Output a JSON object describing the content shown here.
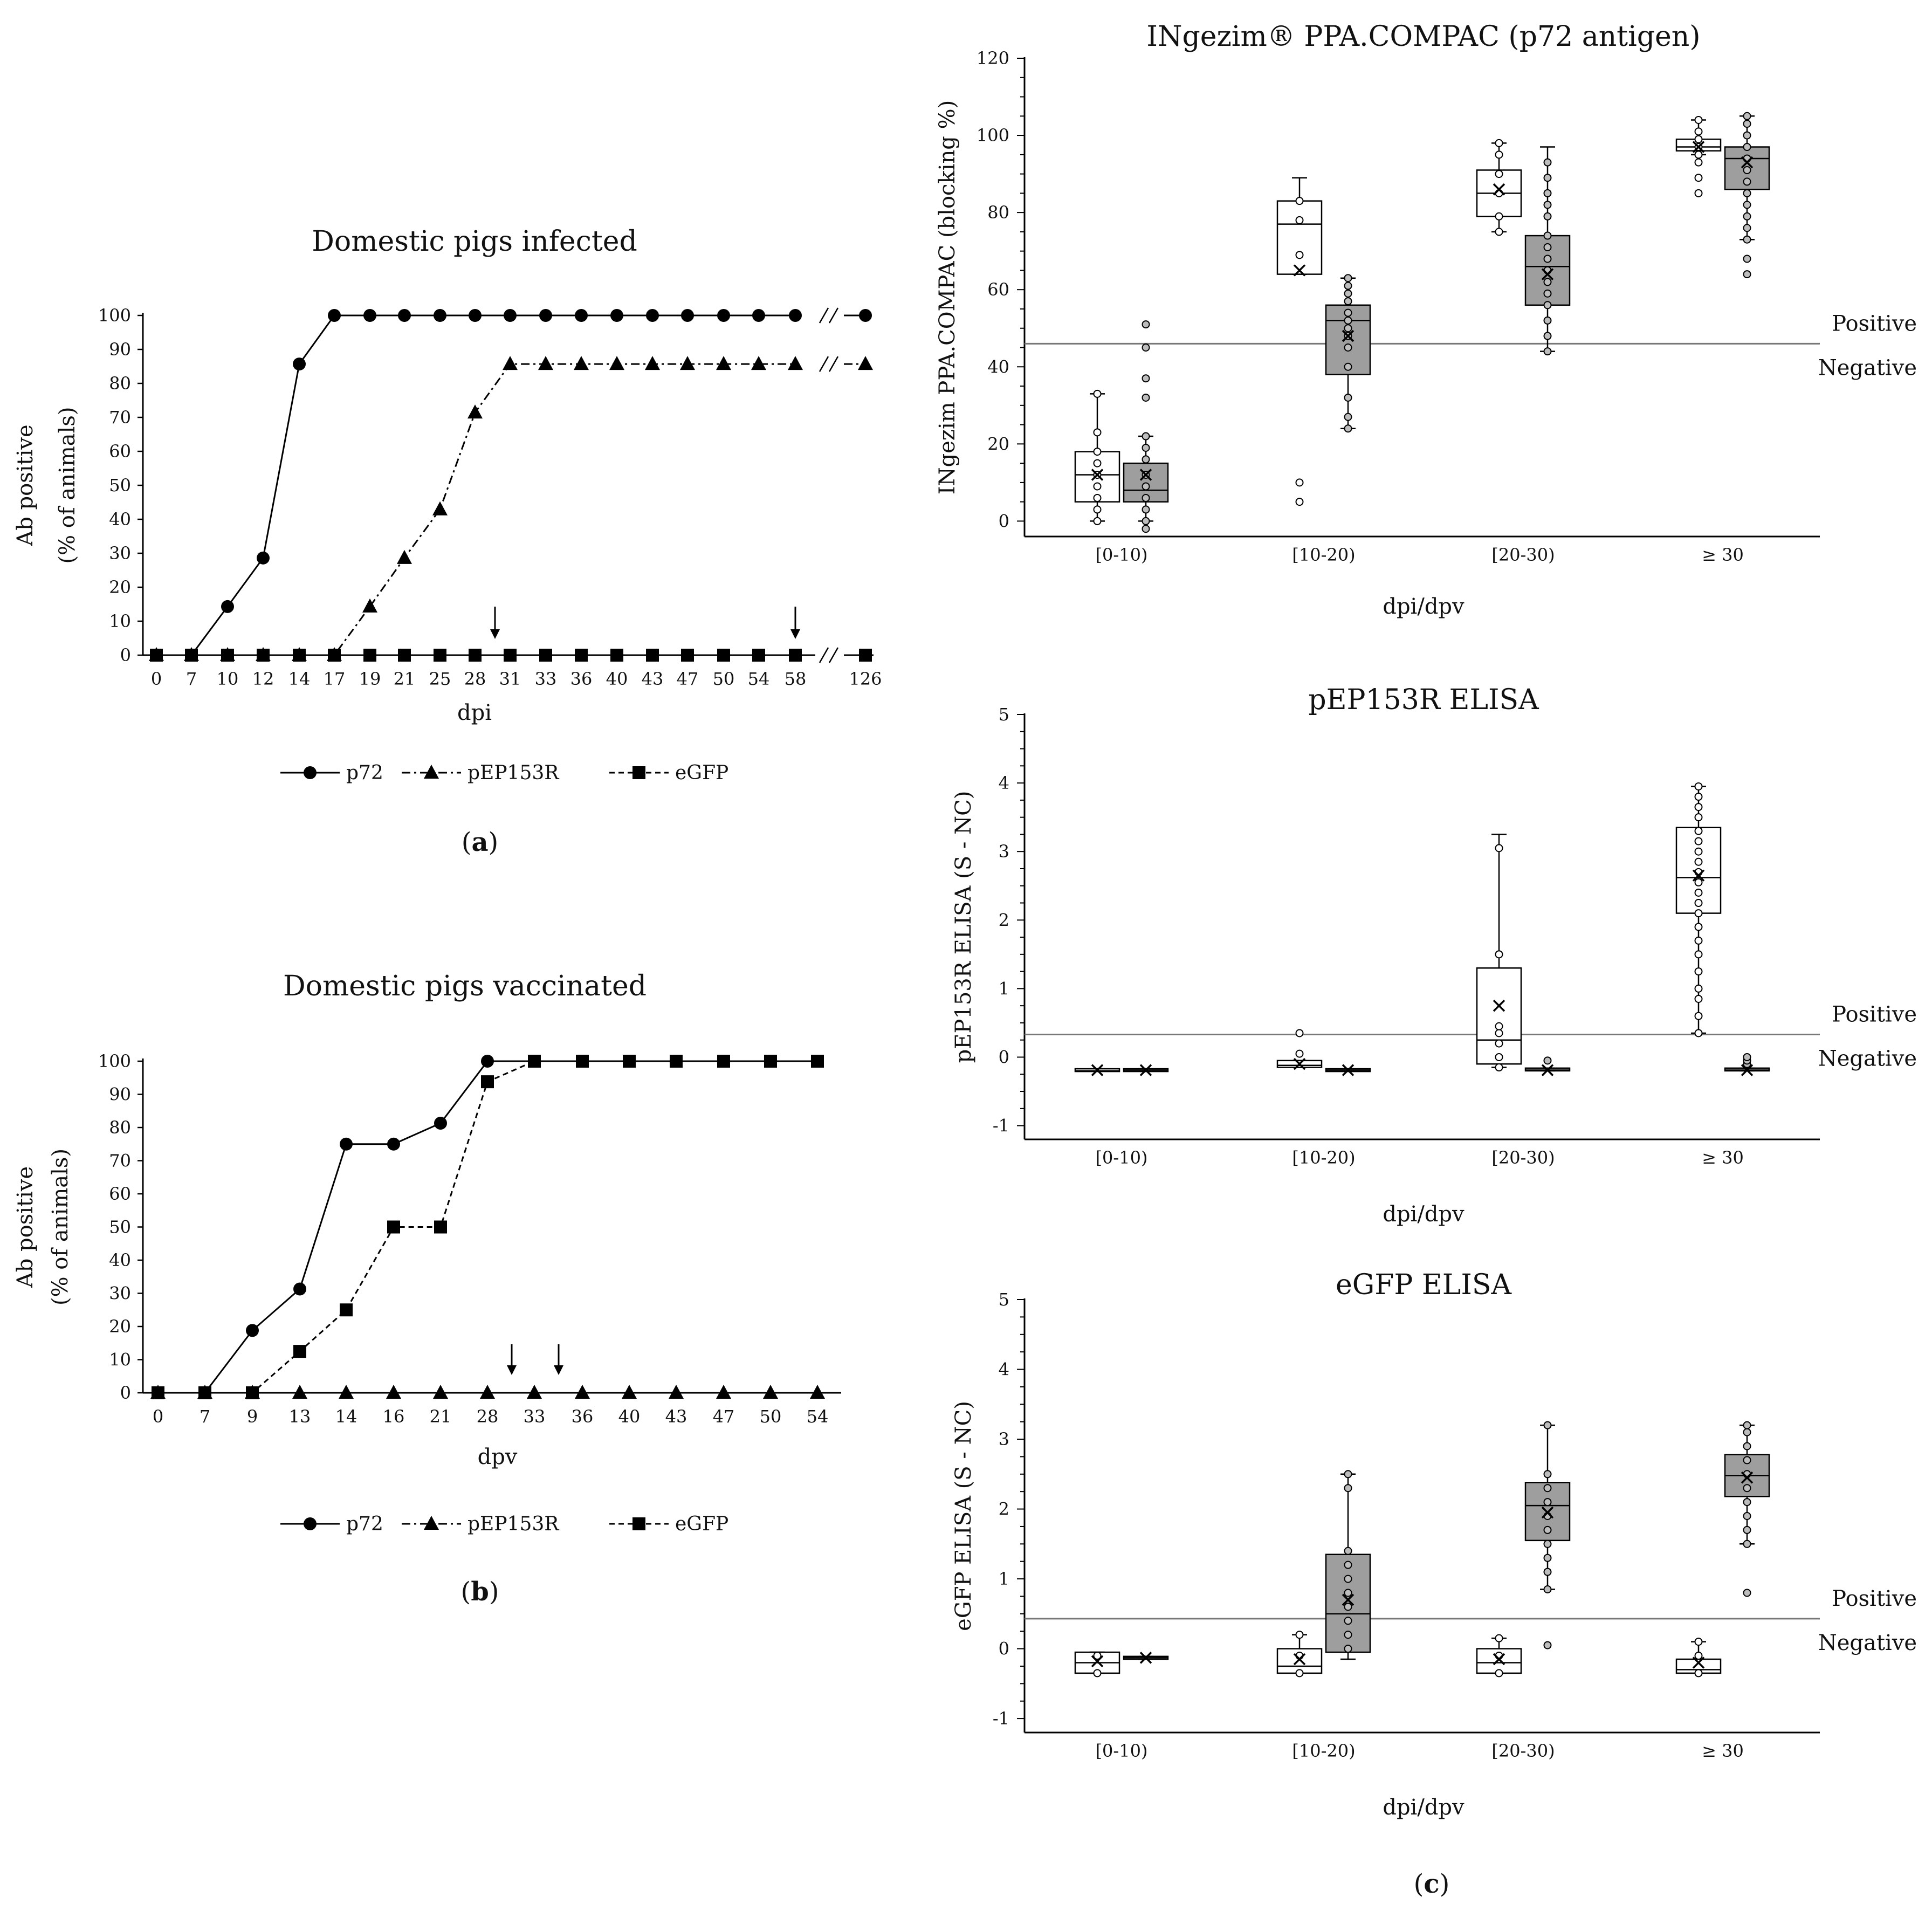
{
  "panels": {
    "a": "a",
    "b": "b",
    "c": "c"
  },
  "chart_data": [
    {
      "id": "a",
      "type": "line",
      "title": "Domestic pigs infected",
      "xlabel": "dpi",
      "ylabel": [
        "Ab positive",
        "(% of animals)"
      ],
      "ylim": [
        0,
        100
      ],
      "yticks": [
        0,
        10,
        20,
        30,
        40,
        50,
        60,
        70,
        80,
        90,
        100
      ],
      "categories": [
        "0",
        "7",
        "10",
        "12",
        "14",
        "17",
        "19",
        "21",
        "25",
        "28",
        "31",
        "33",
        "36",
        "40",
        "43",
        "47",
        "50",
        "54",
        "58",
        "126"
      ],
      "axis_break_after": "58",
      "arrows_at": [
        "28",
        "58"
      ],
      "series": [
        {
          "name": "p72",
          "marker": "circle",
          "dash": "solid",
          "values": [
            0,
            0,
            14.3,
            28.6,
            85.7,
            100,
            100,
            100,
            100,
            100,
            100,
            100,
            100,
            100,
            100,
            100,
            100,
            100,
            100,
            100
          ]
        },
        {
          "name": "pEP153R",
          "marker": "triangle",
          "dash": "dashdot",
          "values": [
            0,
            0,
            0,
            0,
            0,
            0,
            14.3,
            28.6,
            42.9,
            71.4,
            85.7,
            85.7,
            85.7,
            85.7,
            85.7,
            85.7,
            85.7,
            85.7,
            85.7,
            85.7
          ]
        },
        {
          "name": "eGFP",
          "marker": "square",
          "dash": "dashed",
          "values": [
            0,
            0,
            0,
            0,
            0,
            0,
            0,
            0,
            0,
            0,
            0,
            0,
            0,
            0,
            0,
            0,
            0,
            0,
            0,
            0
          ]
        }
      ]
    },
    {
      "id": "b",
      "type": "line",
      "title": "Domestic pigs vaccinated",
      "xlabel": "dpv",
      "ylabel": [
        "Ab positive",
        "(% of animals)"
      ],
      "ylim": [
        0,
        100
      ],
      "yticks": [
        0,
        10,
        20,
        30,
        40,
        50,
        60,
        70,
        80,
        90,
        100
      ],
      "categories": [
        "0",
        "7",
        "9",
        "13",
        "14",
        "16",
        "21",
        "28",
        "33",
        "36",
        "40",
        "43",
        "47",
        "50",
        "54"
      ],
      "arrows_at": [
        "28",
        "33"
      ],
      "series": [
        {
          "name": "p72",
          "marker": "circle",
          "dash": "solid",
          "values": [
            0,
            0,
            18.8,
            31.3,
            75,
            75,
            81.3,
            100,
            100,
            100,
            100,
            100,
            100,
            100,
            100
          ]
        },
        {
          "name": "pEP153R",
          "marker": "triangle",
          "dash": "dashdot",
          "values": [
            0,
            0,
            0,
            0,
            0,
            0,
            0,
            0,
            0,
            0,
            0,
            0,
            0,
            0,
            0
          ]
        },
        {
          "name": "eGFP",
          "marker": "square",
          "dash": "dashed",
          "values": [
            0,
            0,
            0,
            12.5,
            25,
            50,
            50,
            93.8,
            100,
            100,
            100,
            100,
            100,
            100,
            100
          ]
        }
      ]
    },
    {
      "id": "c1",
      "type": "box",
      "title": "INgezim® PPA.COMPAC (p72 antigen)",
      "xlabel": "dpi/dpv",
      "ylabel": "INgezim PPA.COMPAC (blocking %)",
      "ylim": [
        -4,
        120
      ],
      "yticks": [
        0,
        20,
        40,
        60,
        80,
        100,
        120
      ],
      "categories": [
        "[0-10)",
        "[10-20)",
        "[20-30)",
        "≥ 30"
      ],
      "cutoff": 46,
      "cutoff_labels": {
        "above": "Positive",
        "below": "Negative"
      },
      "groups": [
        {
          "cat": 0,
          "fill": "white",
          "min": 0,
          "q1": 5,
          "median": 12,
          "q3": 18,
          "max": 33,
          "mean": 12,
          "points": [
            0,
            3,
            6,
            9,
            12,
            15,
            18,
            23,
            33
          ]
        },
        {
          "cat": 0,
          "fill": "grey",
          "min": 0,
          "q1": 5,
          "median": 8,
          "q3": 15,
          "max": 22,
          "mean": 12,
          "points": [
            -2,
            0,
            3,
            6,
            9,
            12,
            16,
            19,
            22,
            32,
            37,
            45,
            51
          ]
        },
        {
          "cat": 1,
          "fill": "white",
          "min": 64,
          "q1": 64,
          "median": 77,
          "q3": 83,
          "max": 89,
          "mean": 65,
          "points": [
            5,
            10,
            69,
            78,
            83
          ]
        },
        {
          "cat": 1,
          "fill": "grey",
          "min": 24,
          "q1": 38,
          "median": 52,
          "q3": 56,
          "max": 63,
          "mean": 48,
          "points": [
            24,
            27,
            32,
            40,
            45,
            48,
            50,
            52,
            54,
            57,
            59,
            61,
            63
          ]
        },
        {
          "cat": 2,
          "fill": "white",
          "min": 75,
          "q1": 79,
          "median": 85,
          "q3": 91,
          "max": 98,
          "mean": 86,
          "points": [
            75,
            79,
            85,
            90,
            95,
            98
          ]
        },
        {
          "cat": 2,
          "fill": "grey",
          "min": 44,
          "q1": 56,
          "median": 66,
          "q3": 74,
          "max": 97,
          "mean": 64,
          "points": [
            44,
            48,
            52,
            56,
            59,
            62,
            65,
            68,
            71,
            74,
            79,
            82,
            85,
            89,
            93
          ]
        },
        {
          "cat": 3,
          "fill": "white",
          "min": 95,
          "q1": 96,
          "median": 97,
          "q3": 99,
          "max": 104,
          "mean": 97,
          "points": [
            85,
            89,
            93,
            95,
            97,
            99,
            101,
            104
          ]
        },
        {
          "cat": 3,
          "fill": "grey",
          "min": 73,
          "q1": 86,
          "median": 94,
          "q3": 97,
          "max": 105,
          "mean": 93,
          "points": [
            64,
            68,
            73,
            76,
            79,
            82,
            85,
            88,
            91,
            94,
            97,
            100,
            103,
            105
          ]
        }
      ]
    },
    {
      "id": "c2",
      "type": "box",
      "title": "pEP153R ELISA",
      "xlabel": "dpi/dpv",
      "ylabel": "pEP153R ELISA (S - NC)",
      "ylim": [
        -1.2,
        5
      ],
      "yticks": [
        -1,
        0,
        1,
        2,
        3,
        4,
        5
      ],
      "categories": [
        "[0-10)",
        "[10-20)",
        "[20-30)",
        "≥ 30"
      ],
      "cutoff": 0.33,
      "cutoff_labels": {
        "above": "Positive",
        "below": "Negative"
      },
      "groups": [
        {
          "cat": 0,
          "fill": "white",
          "min": -0.2,
          "q1": -0.2,
          "median": -0.2,
          "q3": -0.17,
          "max": -0.17,
          "mean": -0.19,
          "points": []
        },
        {
          "cat": 0,
          "fill": "grey",
          "min": -0.2,
          "q1": -0.2,
          "median": -0.19,
          "q3": -0.17,
          "max": -0.17,
          "mean": -0.19,
          "points": []
        },
        {
          "cat": 1,
          "fill": "white",
          "min": -0.15,
          "q1": -0.15,
          "median": -0.12,
          "q3": -0.05,
          "max": -0.05,
          "mean": -0.1,
          "points": [
            0.05,
            0.35
          ]
        },
        {
          "cat": 1,
          "fill": "grey",
          "min": -0.2,
          "q1": -0.2,
          "median": -0.19,
          "q3": -0.17,
          "max": -0.17,
          "mean": -0.19,
          "points": []
        },
        {
          "cat": 2,
          "fill": "white",
          "min": -0.15,
          "q1": -0.1,
          "median": 0.25,
          "q3": 1.3,
          "max": 3.25,
          "mean": 0.75,
          "points": [
            -0.15,
            0.0,
            0.2,
            0.35,
            0.45,
            1.5,
            3.05
          ]
        },
        {
          "cat": 2,
          "fill": "grey",
          "min": -0.2,
          "q1": -0.2,
          "median": -0.19,
          "q3": -0.16,
          "max": -0.16,
          "mean": -0.19,
          "points": [
            -0.05
          ]
        },
        {
          "cat": 3,
          "fill": "white",
          "min": 0.35,
          "q1": 2.1,
          "median": 2.62,
          "q3": 3.35,
          "max": 3.95,
          "mean": 2.65,
          "points": [
            0.35,
            0.6,
            0.85,
            1.0,
            1.25,
            1.5,
            1.7,
            1.9,
            2.1,
            2.25,
            2.4,
            2.55,
            2.7,
            2.85,
            3.0,
            3.15,
            3.3,
            3.5,
            3.65,
            3.8,
            3.95
          ]
        },
        {
          "cat": 3,
          "fill": "grey",
          "min": -0.2,
          "q1": -0.2,
          "median": -0.19,
          "q3": -0.16,
          "max": -0.16,
          "mean": -0.19,
          "points": [
            -0.1,
            -0.05,
            0.0
          ]
        }
      ]
    },
    {
      "id": "c3",
      "type": "box",
      "title": "eGFP ELISA",
      "xlabel": "dpi/dpv",
      "ylabel": "eGFP ELISA (S - NC)",
      "ylim": [
        -1.2,
        5
      ],
      "yticks": [
        -1,
        0,
        1,
        2,
        3,
        4,
        5
      ],
      "categories": [
        "[0-10)",
        "[10-20)",
        "[20-30)",
        "≥ 30"
      ],
      "cutoff": 0.43,
      "cutoff_labels": {
        "above": "Positive",
        "below": "Negative"
      },
      "groups": [
        {
          "cat": 0,
          "fill": "white",
          "min": -0.35,
          "q1": -0.35,
          "median": -0.2,
          "q3": -0.05,
          "max": -0.05,
          "mean": -0.18,
          "points": [
            -0.35,
            -0.1
          ]
        },
        {
          "cat": 0,
          "fill": "grey",
          "min": -0.15,
          "q1": -0.15,
          "median": -0.13,
          "q3": -0.11,
          "max": -0.11,
          "mean": -0.13,
          "points": []
        },
        {
          "cat": 1,
          "fill": "white",
          "min": -0.35,
          "q1": -0.35,
          "median": -0.25,
          "q3": 0.0,
          "max": 0.2,
          "mean": -0.15,
          "points": [
            -0.35,
            -0.1,
            0.2
          ]
        },
        {
          "cat": 1,
          "fill": "grey",
          "min": -0.15,
          "q1": -0.05,
          "median": 0.5,
          "q3": 1.35,
          "max": 2.5,
          "mean": 0.7,
          "points": [
            0.0,
            0.2,
            0.4,
            0.6,
            0.8,
            1.0,
            1.2,
            1.4,
            2.3,
            2.5
          ]
        },
        {
          "cat": 2,
          "fill": "white",
          "min": -0.35,
          "q1": -0.35,
          "median": -0.2,
          "q3": 0.0,
          "max": 0.15,
          "mean": -0.15,
          "points": [
            -0.35,
            -0.1,
            0.15
          ]
        },
        {
          "cat": 2,
          "fill": "grey",
          "min": 0.85,
          "q1": 1.55,
          "median": 2.05,
          "q3": 2.38,
          "max": 3.2,
          "mean": 1.95,
          "points": [
            0.05,
            0.85,
            1.1,
            1.3,
            1.5,
            1.7,
            1.9,
            2.1,
            2.3,
            2.5,
            3.2
          ]
        },
        {
          "cat": 3,
          "fill": "white",
          "min": -0.35,
          "q1": -0.35,
          "median": -0.3,
          "q3": -0.15,
          "max": 0.1,
          "mean": -0.2,
          "points": [
            -0.35,
            -0.1,
            0.1
          ]
        },
        {
          "cat": 3,
          "fill": "grey",
          "min": 1.5,
          "q1": 2.18,
          "median": 2.48,
          "q3": 2.78,
          "max": 3.2,
          "mean": 2.45,
          "points": [
            0.8,
            1.5,
            1.7,
            1.9,
            2.1,
            2.3,
            2.5,
            2.7,
            2.9,
            3.1,
            3.2
          ]
        }
      ]
    }
  ]
}
